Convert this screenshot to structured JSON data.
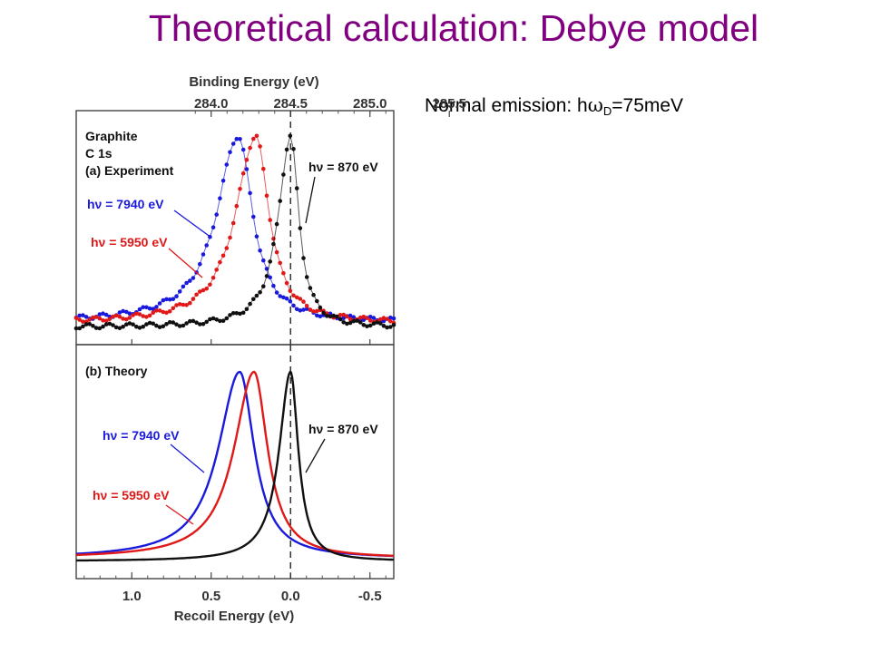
{
  "slide": {
    "title": "Theoretical calculation: Debye model",
    "note_prefix": "Normal emission: h",
    "note_omega": "ω",
    "note_sub": "D",
    "note_suffix": "=75meV"
  },
  "chart_data": [
    {
      "type": "scatter",
      "panel": "top",
      "panel_label_lines": [
        "Graphite",
        "C 1s",
        "(a) Experiment"
      ],
      "top_axis_label": "Binding Energy (eV)",
      "top_axis_ticks": [
        285.5,
        285.0,
        284.5,
        284.0
      ],
      "xlabel": "",
      "xlim": [
        1.35,
        -0.65
      ],
      "ylim": [
        0,
        1.05
      ],
      "reference_line_x": 0.0,
      "legend": "inline labels with leader lines",
      "series": [
        {
          "label": "hν = 7940 eV",
          "color": "#1a1adc",
          "peak_x": 0.33,
          "width": 0.3,
          "baseline": 0.04
        },
        {
          "label": "hν = 5950 eV",
          "color": "#e01818",
          "peak_x": 0.22,
          "width": 0.28,
          "baseline": 0.035
        },
        {
          "label": "hν = 870 eV",
          "color": "#111111",
          "peak_x": 0.0,
          "width": 0.17,
          "baseline": 0.015
        }
      ]
    },
    {
      "type": "line",
      "panel": "bottom",
      "panel_label": "(b) Theory",
      "xlabel": "Recoil Energy (eV)",
      "x_ticks": [
        1.0,
        0.5,
        0.0,
        -0.5
      ],
      "x_tick_labels": [
        "1.0",
        "0.5",
        "0.0",
        "-0.5"
      ],
      "xlim": [
        1.35,
        -0.65
      ],
      "ylim": [
        0,
        1.05
      ],
      "reference_line_x": 0.0,
      "legend": "inline labels with leader lines",
      "series": [
        {
          "label": "hν = 7940 eV",
          "color": "#1a1adc",
          "peak_x": 0.32,
          "width": 0.3,
          "baseline": 0.03
        },
        {
          "label": "hν = 5950 eV",
          "color": "#e01818",
          "peak_x": 0.23,
          "width": 0.28,
          "baseline": 0.03
        },
        {
          "label": "hν = 870 eV",
          "color": "#111111",
          "peak_x": 0.0,
          "width": 0.16,
          "baseline": 0.015
        }
      ]
    }
  ]
}
